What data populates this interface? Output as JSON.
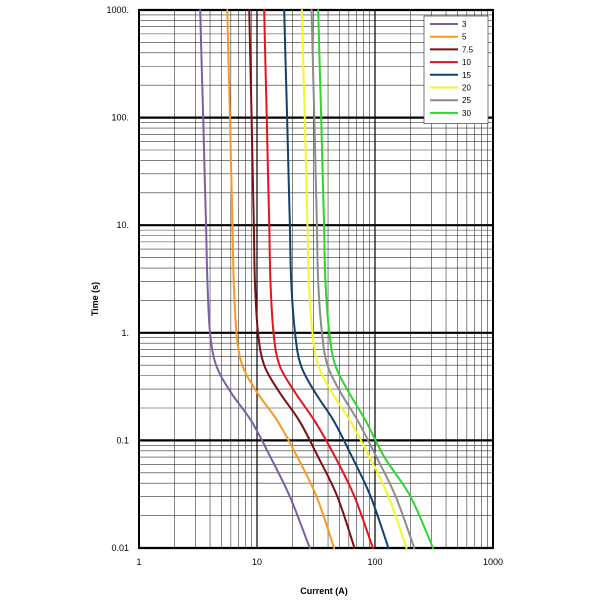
{
  "chart_data": {
    "type": "line",
    "title": "",
    "xlabel": "Current (A)",
    "ylabel": "Time (s)",
    "xscale": "log",
    "yscale": "log",
    "xlim": [
      1,
      1000
    ],
    "ylim": [
      0.01,
      1000
    ],
    "x_tick_labels": [
      "1",
      "10",
      "100",
      "1000"
    ],
    "y_tick_labels": [
      "0.01",
      "0.1",
      "1.",
      "10.",
      "100.",
      "1000."
    ],
    "grid": true,
    "legend_position": "top-right",
    "series": [
      {
        "name": "3",
        "color": "#7b5fa5",
        "x": [
          3.3,
          3.4,
          3.5,
          3.6,
          3.7,
          3.8,
          4.0,
          4.5,
          6.0,
          9.0,
          13,
          19,
          28
        ],
        "y": [
          1000,
          300,
          100,
          30,
          10,
          3,
          1,
          0.5,
          0.28,
          0.15,
          0.07,
          0.03,
          0.01
        ]
      },
      {
        "name": "5",
        "color": "#f59a24",
        "x": [
          5.6,
          5.75,
          5.9,
          6.05,
          6.2,
          6.35,
          6.7,
          7.5,
          10,
          15,
          22,
          32,
          45
        ],
        "y": [
          1000,
          300,
          100,
          30,
          10,
          3,
          1,
          0.5,
          0.28,
          0.15,
          0.07,
          0.03,
          0.01
        ]
      },
      {
        "name": "7.5",
        "color": "#7a1010",
        "x": [
          8.6,
          8.8,
          9.0,
          9.2,
          9.4,
          9.6,
          10.2,
          11.5,
          15.5,
          23,
          33,
          48,
          67
        ],
        "y": [
          1000,
          300,
          100,
          30,
          10,
          3,
          1,
          0.5,
          0.28,
          0.15,
          0.07,
          0.03,
          0.01
        ]
      },
      {
        "name": "10",
        "color": "#e3141c",
        "x": [
          11.5,
          11.8,
          12.1,
          12.4,
          12.7,
          13.0,
          13.8,
          15.5,
          21,
          31,
          46,
          67,
          96
        ],
        "y": [
          1000,
          300,
          100,
          30,
          10,
          3,
          1,
          0.5,
          0.28,
          0.15,
          0.07,
          0.03,
          0.01
        ]
      },
      {
        "name": "15",
        "color": "#12406e",
        "x": [
          17,
          17.5,
          18,
          18.5,
          19,
          19.5,
          21,
          23.5,
          31,
          45,
          64,
          92,
          130
        ],
        "y": [
          1000,
          300,
          100,
          30,
          10,
          3,
          1,
          0.5,
          0.28,
          0.15,
          0.07,
          0.03,
          0.01
        ]
      },
      {
        "name": "20",
        "color": "#f5f528",
        "x": [
          24,
          24.7,
          25.4,
          26.1,
          26.8,
          27.5,
          29.5,
          33,
          43,
          62,
          90,
          130,
          185
        ],
        "y": [
          1000,
          300,
          100,
          30,
          10,
          3,
          1,
          0.5,
          0.28,
          0.15,
          0.07,
          0.03,
          0.01
        ]
      },
      {
        "name": "25",
        "color": "#8c8c8c",
        "x": [
          29,
          29.8,
          30.6,
          31.4,
          32.2,
          33,
          35.5,
          39.5,
          51,
          72,
          103,
          150,
          215
        ],
        "y": [
          1000,
          300,
          100,
          30,
          10,
          3,
          1,
          0.5,
          0.28,
          0.15,
          0.07,
          0.03,
          0.01
        ]
      },
      {
        "name": "30",
        "color": "#2fd42f",
        "x": [
          33,
          34,
          35,
          36,
          37,
          38,
          41,
          46,
          60,
          84,
          120,
          200,
          310
        ],
        "y": [
          1000,
          300,
          100,
          30,
          10,
          3,
          1,
          0.5,
          0.28,
          0.15,
          0.07,
          0.03,
          0.01
        ]
      }
    ]
  }
}
